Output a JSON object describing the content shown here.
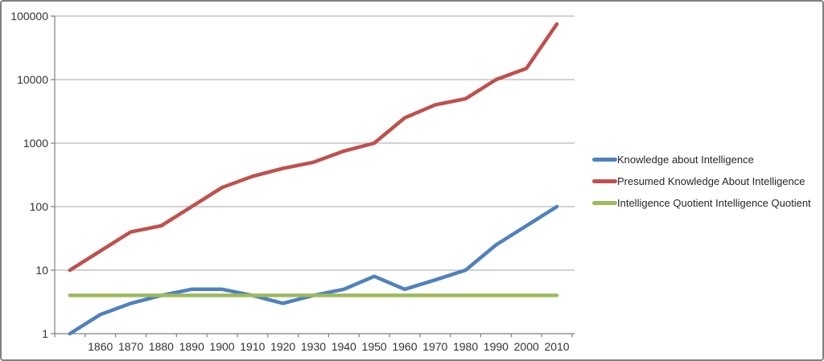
{
  "chart_data": {
    "type": "line",
    "title": "",
    "xlabel": "",
    "ylabel": "",
    "categories": [
      "",
      "1860",
      "1870",
      "1880",
      "1890",
      "1900",
      "1910",
      "1920",
      "1930",
      "1940",
      "1950",
      "1960",
      "1970",
      "1980",
      "1990",
      "2000",
      "2010"
    ],
    "series": [
      {
        "name": "Knowledge about Intelligence",
        "color": "#4F81BD",
        "values": [
          1,
          2,
          3,
          4,
          5,
          5,
          4,
          3,
          4,
          5,
          8,
          5,
          7,
          10,
          25,
          50,
          100
        ]
      },
      {
        "name": "Presumed Knowledge About Intelligence",
        "color": "#C0504D",
        "values": [
          10,
          20,
          40,
          50,
          100,
          200,
          300,
          400,
          500,
          750,
          1000,
          2500,
          4000,
          5000,
          10000,
          15000,
          75000
        ]
      },
      {
        "name": "Intelligence Quotient Intelligence Quotient",
        "color": "#9BBB59",
        "values": [
          4,
          4,
          4,
          4,
          4,
          4,
          4,
          4,
          4,
          4,
          4,
          4,
          4,
          4,
          4,
          4,
          4
        ]
      }
    ],
    "y_axis": {
      "scale": "log",
      "tick_labels": [
        "1",
        "10",
        "100",
        "1000",
        "10000",
        "100000"
      ],
      "range": [
        1,
        100000
      ]
    },
    "legend_position": "right",
    "grid": "horizontal",
    "colors": {
      "gridline": "#A6A6A6",
      "axis": "#808080",
      "text": "#333333",
      "background": "#FFFFFF",
      "frame_border": "#808080"
    }
  }
}
